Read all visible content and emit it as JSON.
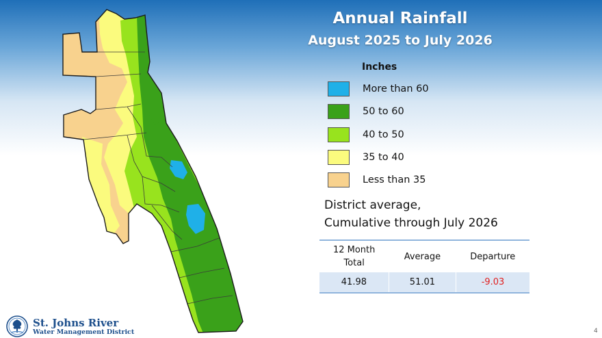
{
  "title": "Annual Rainfall",
  "subtitle": "August 2025 to July 2026",
  "map_colors": {
    "outline": "#1a1a1a",
    "county_line": "#3a3a3a"
  },
  "legend": {
    "heading": "Inches",
    "items": [
      {
        "label": "More than 60",
        "color": "#1fb0e8"
      },
      {
        "label": "50 to 60",
        "color": "#3aa11a"
      },
      {
        "label": "40 to 50",
        "color": "#98e31e"
      },
      {
        "label": "35 to 40",
        "color": "#fbfb7e"
      },
      {
        "label": "Less than 35",
        "color": "#f8d28e"
      }
    ]
  },
  "district_text": {
    "line1": "District average,",
    "line2": "Cumulative through July 2026"
  },
  "summary_table": {
    "headers": [
      "12 Month\nTotal",
      "Average",
      "Departure"
    ],
    "row": [
      "41.98",
      "51.01",
      "-9.03"
    ]
  },
  "logo": {
    "name": "St. Johns River",
    "subtitle": "Water Management District",
    "icon": "tree-emblem-icon"
  },
  "page_number": "4"
}
